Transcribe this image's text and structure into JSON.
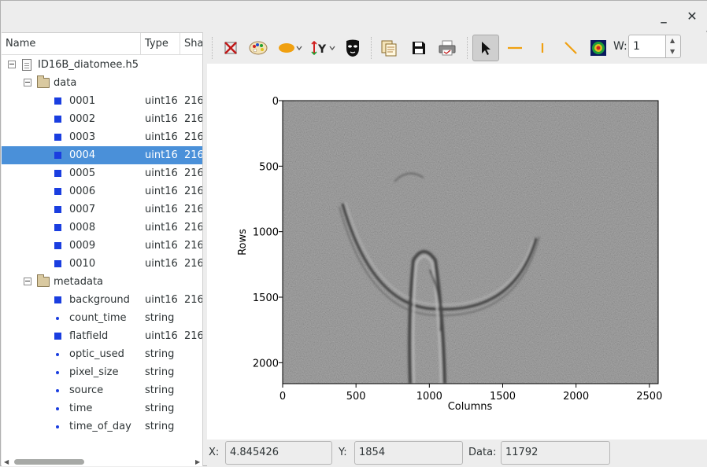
{
  "window": {
    "minimize_glyph": "_",
    "close_glyph": "✕"
  },
  "tree": {
    "columns": [
      "Name",
      "Type",
      "Sha"
    ],
    "file": {
      "name": "ID16B_diatomee.h5"
    },
    "groups": [
      {
        "name": "data",
        "items": [
          {
            "name": "0001",
            "type": "uint16",
            "shape": "216",
            "kind": "dataset"
          },
          {
            "name": "0002",
            "type": "uint16",
            "shape": "216",
            "kind": "dataset"
          },
          {
            "name": "0003",
            "type": "uint16",
            "shape": "216",
            "kind": "dataset"
          },
          {
            "name": "0004",
            "type": "uint16",
            "shape": "216",
            "kind": "dataset",
            "selected": true
          },
          {
            "name": "0005",
            "type": "uint16",
            "shape": "216",
            "kind": "dataset"
          },
          {
            "name": "0006",
            "type": "uint16",
            "shape": "216",
            "kind": "dataset"
          },
          {
            "name": "0007",
            "type": "uint16",
            "shape": "216",
            "kind": "dataset"
          },
          {
            "name": "0008",
            "type": "uint16",
            "shape": "216",
            "kind": "dataset"
          },
          {
            "name": "0009",
            "type": "uint16",
            "shape": "216",
            "kind": "dataset"
          },
          {
            "name": "0010",
            "type": "uint16",
            "shape": "216",
            "kind": "dataset"
          }
        ]
      },
      {
        "name": "metadata",
        "items": [
          {
            "name": "background",
            "type": "uint16",
            "shape": "216",
            "kind": "dataset"
          },
          {
            "name": "count_time",
            "type": "string",
            "shape": "",
            "kind": "string"
          },
          {
            "name": "flatfield",
            "type": "uint16",
            "shape": "216",
            "kind": "dataset"
          },
          {
            "name": "optic_used",
            "type": "string",
            "shape": "",
            "kind": "string"
          },
          {
            "name": "pixel_size",
            "type": "string",
            "shape": "",
            "kind": "string"
          },
          {
            "name": "source",
            "type": "string",
            "shape": "",
            "kind": "string"
          },
          {
            "name": "time",
            "type": "string",
            "shape": "",
            "kind": "string"
          },
          {
            "name": "time_of_day",
            "type": "string",
            "shape": "",
            "kind": "string"
          }
        ]
      }
    ]
  },
  "toolbar": {
    "tools": [
      {
        "name": "clear-icon"
      },
      {
        "name": "palette-icon"
      },
      {
        "name": "ellipse-color-icon"
      },
      {
        "name": "y-axis-icon"
      },
      {
        "name": "mask-icon"
      },
      {
        "name": "copy-icon"
      },
      {
        "name": "save-icon"
      },
      {
        "name": "print-icon"
      },
      {
        "name": "select-pointer-icon",
        "active": true
      },
      {
        "name": "horizontal-line-icon"
      },
      {
        "name": "vertical-line-icon"
      },
      {
        "name": "diagonal-line-icon"
      },
      {
        "name": "colormap-icon"
      }
    ],
    "width_label": "W:",
    "width_value": "1"
  },
  "plot": {
    "xlabel": "Columns",
    "ylabel": "Rows",
    "x_ticks": [
      "0",
      "500",
      "1000",
      "1500",
      "2000",
      "2500"
    ],
    "y_ticks": [
      "0",
      "500",
      "1000",
      "1500",
      "2000"
    ],
    "xlim": [
      0,
      2560
    ],
    "ylim": [
      0,
      2160
    ]
  },
  "status": {
    "x_label": "X:",
    "x_value": "4.845426",
    "y_label": "Y:",
    "y_value": "1854",
    "data_label": "Data:",
    "data_value": "11792"
  },
  "colors": {
    "selection": "#4a90d9",
    "dataset_icon": "#1a3ee0",
    "accent_orange": "#f0a010"
  }
}
